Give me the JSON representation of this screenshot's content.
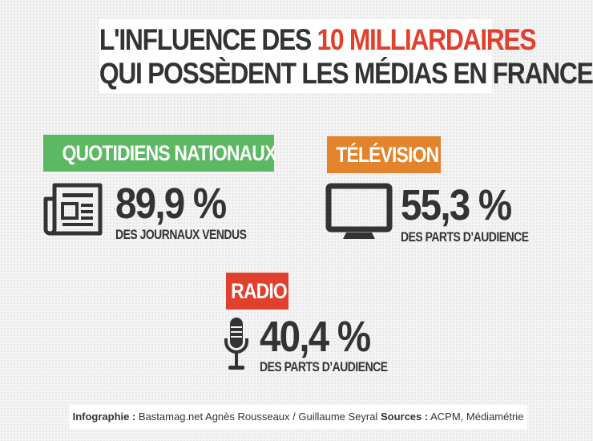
{
  "title": {
    "line1_pre": "L'INFLUENCE DES ",
    "line1_highlight": "10 MILLIARDAIRES",
    "line2": "QUI POSSÈDENT LES MÉDIAS EN FRANCE",
    "highlight_color": "#e2402e"
  },
  "sections": {
    "quotidiens": {
      "label": "QUOTIDIENS NATIONAUX",
      "color": "#5cb863",
      "icon": "newspaper-icon",
      "value": "89,9 %",
      "caption": "DES JOURNAUX VENDUS"
    },
    "television": {
      "label": "TÉLÉVISION",
      "color": "#e3832b",
      "icon": "tv-monitor-icon",
      "value": "55,3 %",
      "caption": "DES PARTS D’AUDIENCE"
    },
    "radio": {
      "label": "RADIO",
      "color": "#e2402e",
      "icon": "microphone-icon",
      "value": "40,4 %",
      "caption": "DES PARTS D’AUDIENCE"
    }
  },
  "footer": {
    "infographie_label": "Infographie :",
    "infographie_value": " Bastamag.net   Agnès Rousseaux / Guillaume Seyral ",
    "sources_label": "Sources :",
    "sources_value": " ACPM, Médiamétrie"
  }
}
